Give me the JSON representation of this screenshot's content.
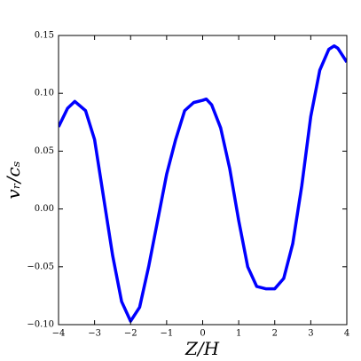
{
  "chart_data": {
    "type": "line",
    "x_label": "Z/H",
    "y_label": "vᵣ/cₛ",
    "xlim": [
      -4,
      4
    ],
    "ylim": [
      -0.1,
      0.15
    ],
    "xticks": [
      {
        "value": -4,
        "label": "−4"
      },
      {
        "value": -3,
        "label": "−3"
      },
      {
        "value": -2,
        "label": "−2"
      },
      {
        "value": -1,
        "label": "−1"
      },
      0,
      1,
      2,
      3,
      4
    ],
    "yticks": [
      {
        "value": -0.1,
        "label": "−0.10"
      },
      {
        "value": -0.05,
        "label": "−0.05"
      },
      {
        "value": 0,
        "label": "0.00"
      },
      {
        "value": 0.05,
        "label": "0.05"
      },
      {
        "value": 0.1,
        "label": "0.10"
      },
      {
        "value": 0.15,
        "label": "0.15"
      }
    ],
    "series": [
      {
        "color": "#0000ff",
        "x": [
          -4,
          -3.75,
          -3.55,
          -3.25,
          -3,
          -2.75,
          -2.5,
          -2.25,
          -2,
          -1.75,
          -1.5,
          -1.25,
          -1,
          -0.75,
          -0.5,
          -0.25,
          0,
          0.1,
          0.25,
          0.5,
          0.75,
          1,
          1.25,
          1.5,
          1.75,
          2,
          2.25,
          2.5,
          2.75,
          3,
          3.25,
          3.5,
          3.65,
          3.75,
          4
        ],
        "values": [
          0.071,
          0.087,
          0.093,
          0.085,
          0.06,
          0.01,
          -0.04,
          -0.08,
          -0.097,
          -0.085,
          -0.05,
          -0.01,
          0.03,
          0.06,
          0.085,
          0.092,
          0.094,
          0.095,
          0.09,
          0.07,
          0.035,
          -0.01,
          -0.05,
          -0.067,
          -0.069,
          -0.069,
          -0.06,
          -0.03,
          0.02,
          0.08,
          0.12,
          0.138,
          0.141,
          0.139,
          0.127
        ]
      }
    ]
  }
}
